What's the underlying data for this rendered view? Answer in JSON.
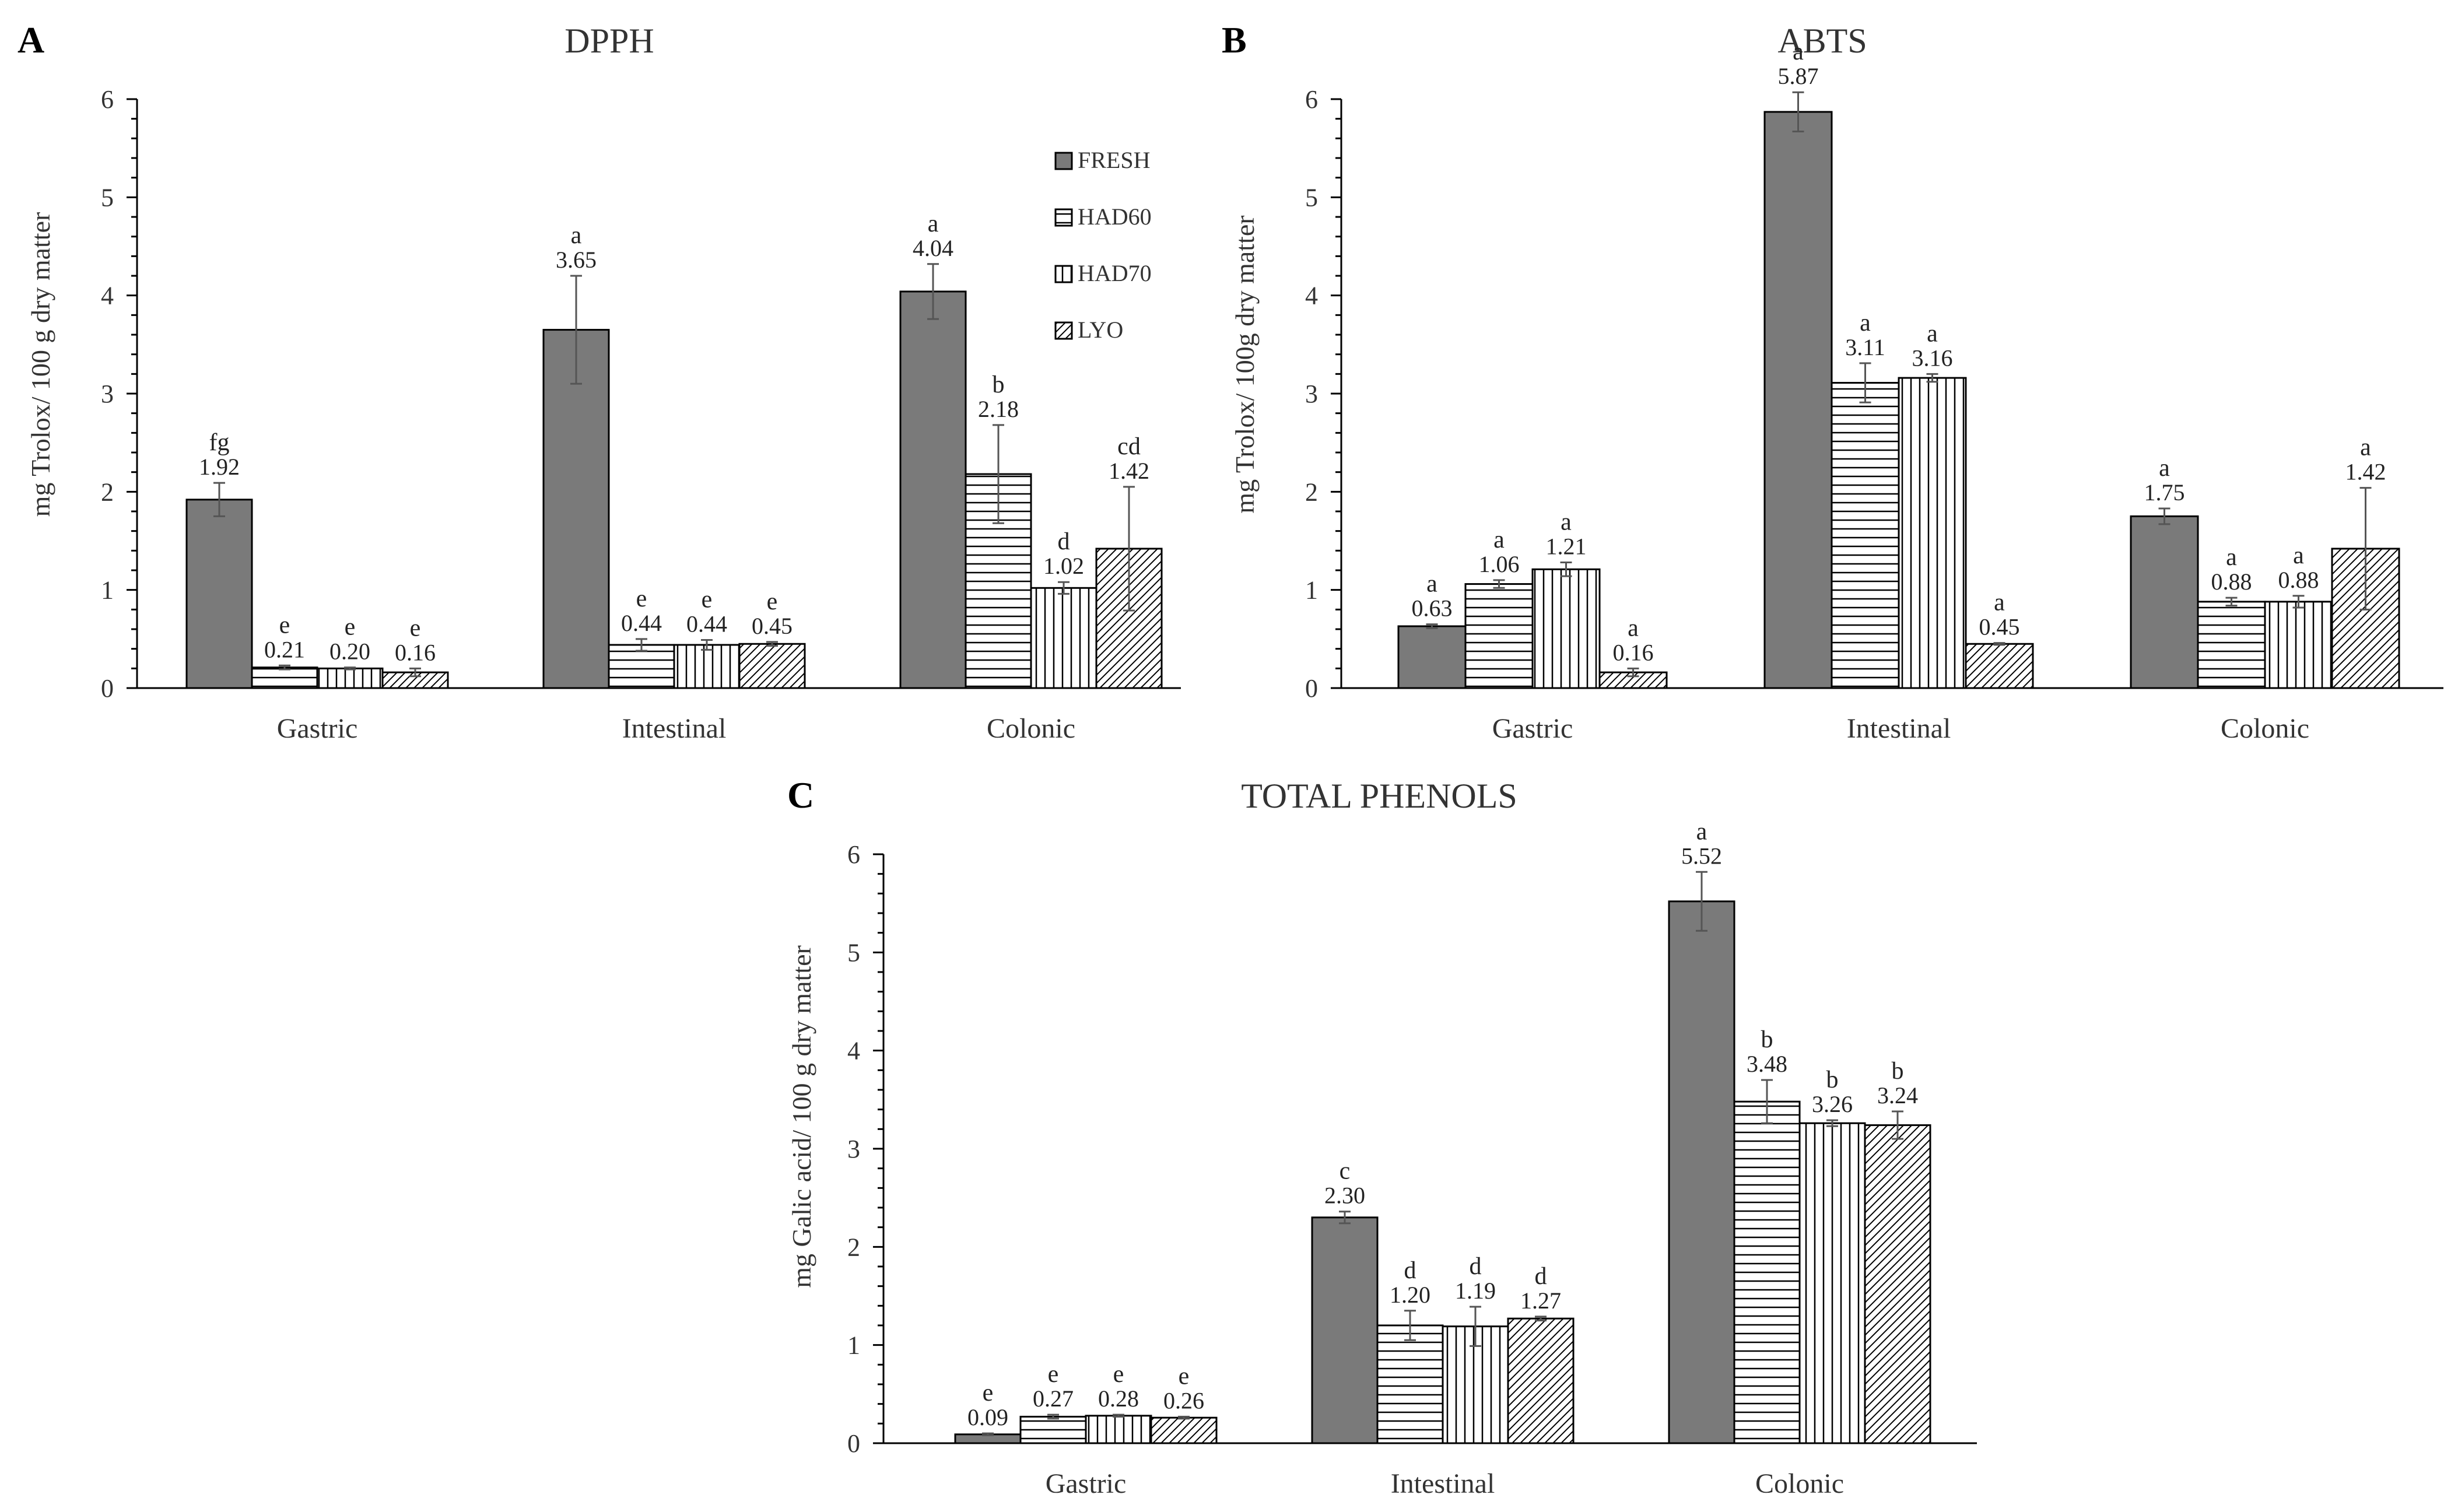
{
  "legend": [
    "FRESH",
    "HAD60",
    "HAD70",
    "LYO"
  ],
  "series_fills": [
    "#7a7a7a",
    "url(#pat-h)",
    "url(#pat-v)",
    "url(#pat-d)"
  ],
  "chart_data": [
    {
      "type": "bar",
      "panel": "A",
      "title": "DPPH",
      "ylabel": "mg Trolox/ 100 g dry matter",
      "xlabel": "",
      "ylim": [
        0,
        6
      ],
      "yticks": [
        "0",
        "1",
        "2",
        "3",
        "4",
        "5",
        "6"
      ],
      "categories": [
        "Gastric",
        "Intestinal",
        "Colonic"
      ],
      "series": [
        {
          "name": "FRESH",
          "values": [
            1.92,
            3.65,
            4.04
          ],
          "labels": [
            "1.92",
            "3.65",
            "4.04"
          ],
          "errors": [
            0.17,
            0.55,
            0.28
          ],
          "sig": [
            "fg",
            "a",
            "a"
          ]
        },
        {
          "name": "HAD60",
          "values": [
            0.21,
            0.44,
            2.18
          ],
          "labels": [
            "0.21",
            "0.44",
            "2.18"
          ],
          "errors": [
            0.02,
            0.06,
            0.5
          ],
          "sig": [
            "e",
            "e",
            "b"
          ]
        },
        {
          "name": "HAD70",
          "values": [
            0.2,
            0.44,
            1.02
          ],
          "labels": [
            "0.20",
            "0.44",
            "1.02"
          ],
          "errors": [
            0.01,
            0.05,
            0.06
          ],
          "sig": [
            "e",
            "e",
            "d"
          ]
        },
        {
          "name": "LYO",
          "values": [
            0.16,
            0.45,
            1.42
          ],
          "labels": [
            "0.16",
            "0.45",
            "1.42"
          ],
          "errors": [
            0.04,
            0.02,
            0.63
          ],
          "sig": [
            "e",
            "e",
            "cd"
          ]
        }
      ]
    },
    {
      "type": "bar",
      "panel": "B",
      "title": "ABTS",
      "ylabel": "mg Trolox/ 100g dry matter",
      "xlabel": "",
      "ylim": [
        0,
        6
      ],
      "yticks": [
        "0",
        "1",
        "2",
        "3",
        "4",
        "5",
        "6"
      ],
      "categories": [
        "Gastric",
        "Intestinal",
        "Colonic"
      ],
      "series": [
        {
          "name": "FRESH",
          "values": [
            0.63,
            5.87,
            1.75
          ],
          "labels": [
            "0.63",
            "5.87",
            "1.75"
          ],
          "errors": [
            0.02,
            0.2,
            0.08
          ],
          "sig": [
            "a",
            "a",
            "a"
          ]
        },
        {
          "name": "HAD60",
          "values": [
            1.06,
            3.11,
            0.88
          ],
          "labels": [
            "1.06",
            "3.11",
            "0.88"
          ],
          "errors": [
            0.04,
            0.2,
            0.04
          ],
          "sig": [
            "a",
            "a",
            "a"
          ]
        },
        {
          "name": "HAD70",
          "values": [
            1.21,
            3.16,
            0.88
          ],
          "labels": [
            "1.21",
            "3.16",
            "0.88"
          ],
          "errors": [
            0.07,
            0.04,
            0.06
          ],
          "sig": [
            "a",
            "a",
            "a"
          ]
        },
        {
          "name": "LYO",
          "values": [
            0.16,
            0.45,
            1.42
          ],
          "labels": [
            "0.16",
            "0.45",
            "1.42"
          ],
          "errors": [
            0.04,
            0.01,
            0.62
          ],
          "sig": [
            "a",
            "a",
            "a"
          ]
        }
      ]
    },
    {
      "type": "bar",
      "panel": "C",
      "title": "TOTAL PHENOLS",
      "ylabel": "mg Galic acid/ 100 g dry matter",
      "xlabel": "",
      "ylim": [
        0,
        6
      ],
      "yticks": [
        "0",
        "1",
        "2",
        "3",
        "4",
        "5",
        "6"
      ],
      "categories": [
        "Gastric",
        "Intestinal",
        "Colonic"
      ],
      "series": [
        {
          "name": "FRESH",
          "values": [
            0.09,
            2.3,
            5.52
          ],
          "labels": [
            "0.09",
            "2.30",
            "5.52"
          ],
          "errors": [
            0.01,
            0.06,
            0.3
          ],
          "sig": [
            "e",
            "c",
            "a"
          ]
        },
        {
          "name": "HAD60",
          "values": [
            0.27,
            1.2,
            3.48
          ],
          "labels": [
            "0.27",
            "1.20",
            "3.48"
          ],
          "errors": [
            0.02,
            0.15,
            0.22
          ],
          "sig": [
            "e",
            "d",
            "b"
          ]
        },
        {
          "name": "HAD70",
          "values": [
            0.28,
            1.19,
            3.26
          ],
          "labels": [
            "0.28",
            "1.19",
            "3.26"
          ],
          "errors": [
            0.01,
            0.2,
            0.03
          ],
          "sig": [
            "e",
            "d",
            "b"
          ]
        },
        {
          "name": "LYO",
          "values": [
            0.26,
            1.27,
            3.24
          ],
          "labels": [
            "0.26",
            "1.27",
            "3.24"
          ],
          "errors": [
            0.01,
            0.02,
            0.14
          ],
          "sig": [
            "e",
            "d",
            "b"
          ]
        }
      ]
    }
  ]
}
